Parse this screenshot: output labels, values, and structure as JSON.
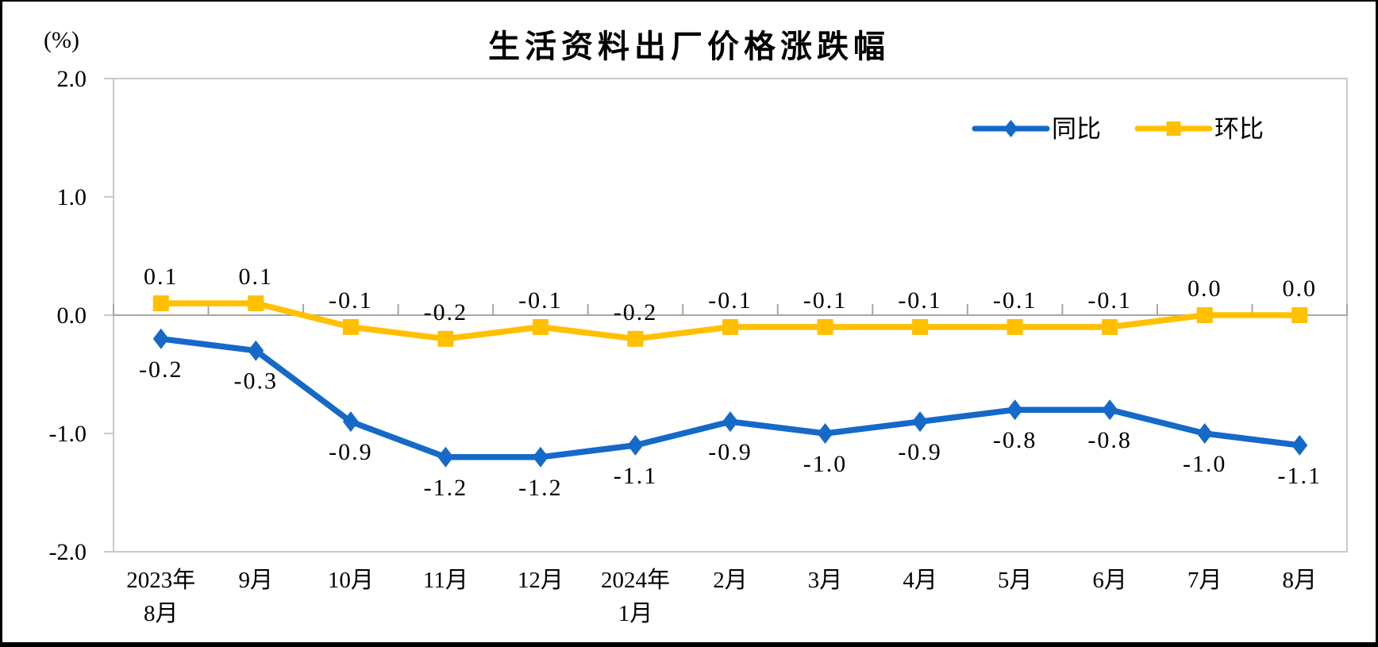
{
  "chart_data": {
    "type": "line",
    "title": "生活资料出厂价格涨跌幅",
    "unit_label": "(%)",
    "categories": [
      "2023年\n8月",
      "9月",
      "10月",
      "11月",
      "12月",
      "2024年\n1月",
      "2月",
      "3月",
      "4月",
      "5月",
      "6月",
      "7月",
      "8月"
    ],
    "series": [
      {
        "name": "同比",
        "color": "#1569C7",
        "marker": "diamond",
        "label_position": "below",
        "values": [
          -0.2,
          -0.3,
          -0.9,
          -1.2,
          -1.2,
          -1.1,
          -0.9,
          -1.0,
          -0.9,
          -0.8,
          -0.8,
          -1.0,
          -1.1
        ]
      },
      {
        "name": "环比",
        "color": "#FFC000",
        "marker": "square",
        "label_position": "above",
        "values": [
          0.1,
          0.1,
          -0.1,
          -0.2,
          -0.1,
          -0.2,
          -0.1,
          -0.1,
          -0.1,
          -0.1,
          -0.1,
          0.0,
          0.0
        ]
      }
    ],
    "y_axis": {
      "min": -2.0,
      "max": 2.0,
      "tick_step": 1.0,
      "tick_labels": [
        "2.0",
        "1.0",
        "0.0",
        "-1.0",
        "-2.0"
      ]
    },
    "legend": {
      "position": "top-right",
      "entries": [
        "同比",
        "环比"
      ]
    },
    "grid": false,
    "axis_color": "#C9C9C9",
    "zero_line_color": "#A6A6A6",
    "text_color": "#000000"
  }
}
